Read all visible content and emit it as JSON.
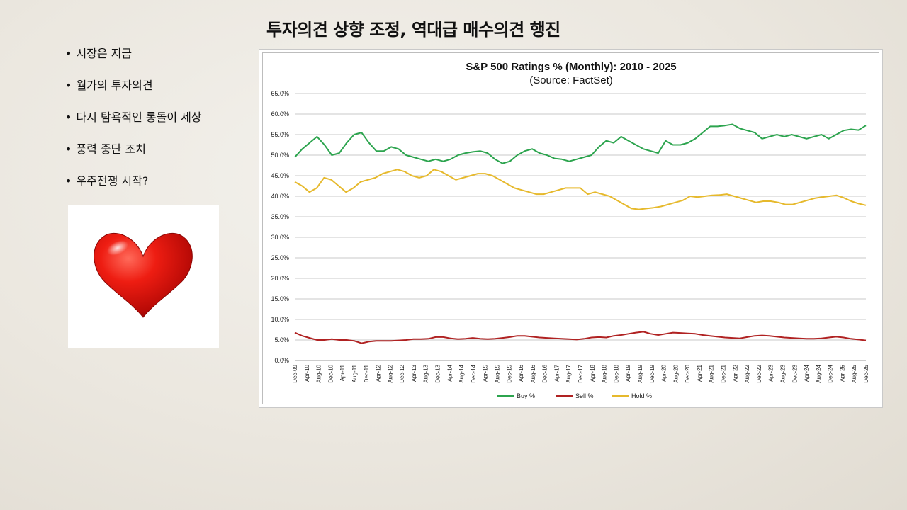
{
  "slide": {
    "title": "투자의견 상향 조정, 역대급 매수의견 행진",
    "bullets": [
      {
        "label": "시장은 지금"
      },
      {
        "label": "월가의 투자의견"
      },
      {
        "label": "다시 탐욕적인 롱돌이 세상"
      },
      {
        "label": "풍력 중단 조치"
      },
      {
        "label": "우주전쟁 시작?"
      }
    ],
    "bullet_glyph": "•",
    "image": {
      "icon": "heart-icon"
    }
  },
  "chart_data": {
    "type": "line",
    "title": "S&P 500 Ratings % (Monthly): 2010 - 2025",
    "subtitle": "(Source: FactSet)",
    "xlabel": "",
    "ylabel": "",
    "ylim": [
      0,
      65
    ],
    "grid": true,
    "legend_position": "bottom",
    "y_ticks": [
      "65.0%",
      "60.0%",
      "55.0%",
      "50.0%",
      "45.0%",
      "40.0%",
      "35.0%",
      "30.0%",
      "25.0%",
      "20.0%",
      "15.0%",
      "10.0%",
      "5.0%",
      "0.0%"
    ],
    "y_tick_values": [
      65,
      60,
      55,
      50,
      45,
      40,
      35,
      30,
      25,
      20,
      15,
      10,
      5,
      0
    ],
    "x_tick_labels": [
      "Dec-09",
      "Apr-10",
      "Aug-10",
      "Dec-10",
      "Apr-11",
      "Aug-11",
      "Dec-11",
      "Apr-12",
      "Aug-12",
      "Dec-12",
      "Apr-13",
      "Aug-13",
      "Dec-13",
      "Apr-14",
      "Aug-14",
      "Dec-14",
      "Apr-15",
      "Aug-15",
      "Dec-15",
      "Apr-16",
      "Aug-16",
      "Dec-16",
      "Apr-17",
      "Aug-17",
      "Dec-17",
      "Apr-18",
      "Aug-18",
      "Dec-18",
      "Apr-19",
      "Aug-19",
      "Dec-19",
      "Apr-20",
      "Aug-20",
      "Dec-20",
      "Apr-21",
      "Aug-21",
      "Dec-21",
      "Apr-22",
      "Aug-22",
      "Dec-22",
      "Apr-23",
      "Aug-23",
      "Dec-23",
      "Apr-24",
      "Aug-24",
      "Dec-24",
      "Apr-25",
      "Aug-25",
      "Dec-25"
    ],
    "series": [
      {
        "name": "Buy %",
        "color": "#2ca44e",
        "values": [
          49.5,
          51.5,
          53,
          54.5,
          52.5,
          50,
          50.5,
          53,
          55,
          55.5,
          53,
          51,
          51,
          52,
          51.5,
          50,
          49.5,
          49,
          48.5,
          49,
          48.5,
          49,
          50,
          50.5,
          50.8,
          51,
          50.5,
          49,
          48,
          48.5,
          50,
          51,
          51.5,
          50.5,
          50,
          49.2,
          49,
          48.5,
          49,
          49.5,
          50,
          52,
          53.5,
          53,
          54.5,
          53.5,
          52.5,
          51.5,
          51,
          50.5,
          53.5,
          52.5,
          52.5,
          53,
          54,
          55.5,
          57,
          57,
          57.2,
          57.5,
          56.5,
          56,
          55.5,
          54,
          54.5,
          55,
          54.5,
          55,
          54.5,
          54,
          54.5,
          55,
          54,
          55,
          56,
          56.3,
          56.1,
          57.2
        ]
      },
      {
        "name": "Sell %",
        "color": "#b02222",
        "values": [
          6.8,
          6,
          5.5,
          5,
          5,
          5.2,
          5,
          5,
          4.8,
          4.2,
          4.6,
          4.8,
          4.8,
          4.8,
          4.9,
          5,
          5.2,
          5.2,
          5.3,
          5.7,
          5.7,
          5.4,
          5.2,
          5.3,
          5.5,
          5.3,
          5.2,
          5.3,
          5.5,
          5.7,
          6,
          6,
          5.8,
          5.6,
          5.5,
          5.4,
          5.3,
          5.2,
          5.1,
          5.3,
          5.6,
          5.7,
          5.6,
          6,
          6.2,
          6.5,
          6.8,
          7,
          6.5,
          6.2,
          6.5,
          6.8,
          6.7,
          6.6,
          6.5,
          6.2,
          6,
          5.8,
          5.6,
          5.5,
          5.4,
          5.7,
          6,
          6.1,
          6,
          5.8,
          5.6,
          5.5,
          5.4,
          5.3,
          5.3,
          5.4,
          5.6,
          5.8,
          5.6,
          5.3,
          5.1,
          4.9
        ]
      },
      {
        "name": "Hold %",
        "color": "#e6b92c",
        "values": [
          43.5,
          42.5,
          41,
          42,
          44.5,
          44,
          42.5,
          41,
          42,
          43.5,
          44,
          44.5,
          45.5,
          46,
          46.5,
          46,
          45,
          44.5,
          45,
          46.5,
          46,
          45,
          44,
          44.5,
          45,
          45.5,
          45.5,
          45,
          44,
          43,
          42,
          41.5,
          41,
          40.5,
          40.5,
          41,
          41.5,
          42,
          42,
          42,
          40.5,
          41,
          40.5,
          40,
          39,
          38,
          37,
          36.8,
          37,
          37.2,
          37.5,
          38,
          38.5,
          39,
          40,
          39.8,
          40,
          40.2,
          40.3,
          40.5,
          40,
          39.5,
          39,
          38.5,
          38.8,
          38.8,
          38.5,
          38,
          38,
          38.5,
          39,
          39.5,
          39.8,
          40,
          40.2,
          39.6,
          38.8,
          38.2,
          37.8
        ]
      }
    ]
  }
}
